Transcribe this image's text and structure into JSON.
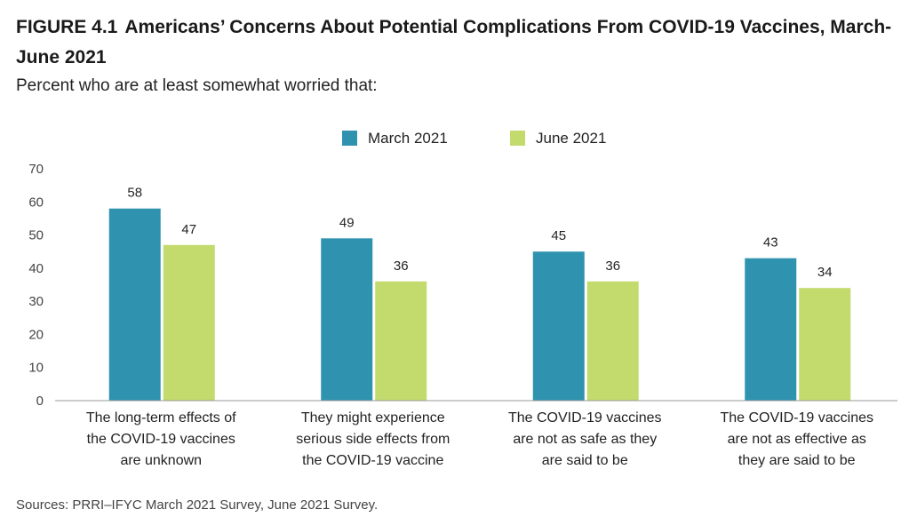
{
  "figure": {
    "number": "FIGURE 4.1",
    "title": "Americans’ Concerns About Potential Complications From COVID-19 Vaccines, March-June 2021",
    "subtitle": "Percent who are at least somewhat worried that:",
    "source": "Sources: PRRI–IFYC March 2021 Survey, June 2021 Survey."
  },
  "colors": {
    "march": "#2f93b0",
    "june": "#c3da6d",
    "axis": "#999999"
  },
  "chart_data": {
    "type": "bar",
    "categories": [
      [
        "The long-term effects of",
        "the COVID-19 vaccines",
        "are unknown"
      ],
      [
        "They might experience",
        "serious side effects from",
        "the COVID-19 vaccine"
      ],
      [
        "The COVID-19 vaccines",
        "are not as safe as they",
        "are said to be"
      ],
      [
        "The COVID-19 vaccines",
        "are not as effective as",
        "they are said to be"
      ]
    ],
    "series": [
      {
        "name": "March 2021",
        "values": [
          58,
          49,
          45,
          43
        ]
      },
      {
        "name": "June 2021",
        "values": [
          47,
          36,
          36,
          34
        ]
      }
    ],
    "ylim": [
      0,
      70
    ],
    "yticks": [
      0,
      10,
      20,
      30,
      40,
      50,
      60,
      70
    ],
    "grid": false,
    "legend_position": "top-center",
    "data_labels": true
  }
}
